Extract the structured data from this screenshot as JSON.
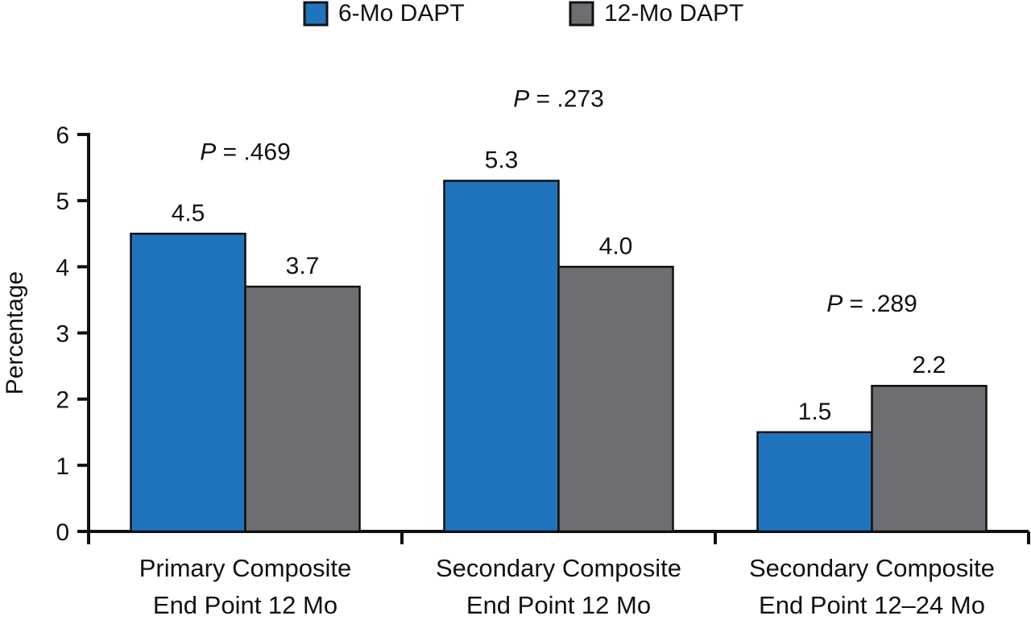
{
  "chart_data": {
    "type": "bar",
    "title": "",
    "xlabel": "",
    "ylabel": "Percentage",
    "ylim": [
      0,
      6
    ],
    "yticks": [
      "0",
      "1",
      "2",
      "3",
      "4",
      "5",
      "6"
    ],
    "grid": false,
    "legend_placement": "top-center",
    "categories": [
      [
        "Primary Composite",
        "End Point 12 Mo"
      ],
      [
        "Secondary Composite",
        "End Point 12 Mo"
      ],
      [
        "Secondary Composite",
        "End Point 12–24 Mo"
      ]
    ],
    "series": [
      {
        "name": "6-Mo DAPT",
        "color": "#1f74bd",
        "values": [
          4.5,
          5.3,
          1.5
        ],
        "labels": [
          "4.5",
          "5.3",
          "1.5"
        ]
      },
      {
        "name": "12-Mo DAPT",
        "color": "#6d6e71",
        "values": [
          3.7,
          4.0,
          2.2
        ],
        "labels": [
          "3.7",
          "4.0",
          "2.2"
        ]
      }
    ],
    "annotations": [
      {
        "prefix": "P",
        "text": " = .469"
      },
      {
        "prefix": "P",
        "text": " = .273"
      },
      {
        "prefix": "P",
        "text": " = .289"
      }
    ]
  }
}
